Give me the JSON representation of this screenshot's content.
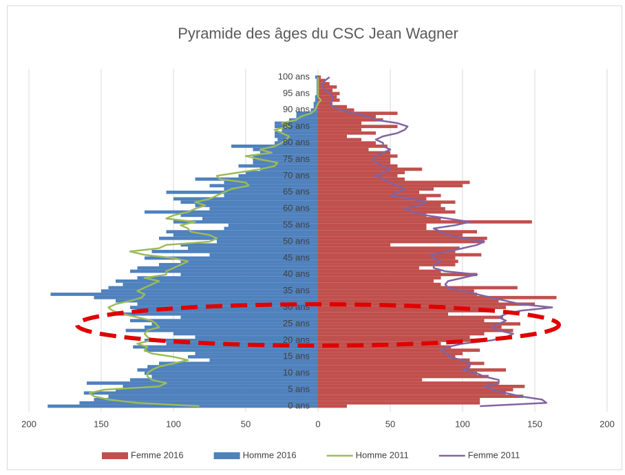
{
  "chart_data": {
    "type": "bar",
    "orientation": "horizontal",
    "title": "Pyramide des âges du CSC Jean Wagner",
    "categories": [
      "0 ans",
      null,
      null,
      null,
      null,
      "5 ans",
      null,
      null,
      null,
      null,
      "10 ans",
      null,
      null,
      null,
      null,
      "15 ans",
      null,
      null,
      null,
      null,
      "20 ans",
      null,
      null,
      null,
      null,
      "25 ans",
      null,
      null,
      null,
      null,
      "30 ans",
      null,
      null,
      null,
      null,
      "35 ans",
      null,
      null,
      null,
      null,
      "40 ans",
      null,
      null,
      null,
      null,
      "45 ans",
      null,
      null,
      null,
      null,
      "50 ans",
      null,
      null,
      null,
      null,
      "55 ans",
      null,
      null,
      null,
      null,
      "60 ans",
      null,
      null,
      null,
      null,
      "65 ans",
      null,
      null,
      null,
      null,
      "70 ans",
      null,
      null,
      null,
      null,
      "75 ans",
      null,
      null,
      null,
      null,
      "80 ans",
      null,
      null,
      null,
      null,
      "85 ans",
      null,
      null,
      null,
      null,
      "90 ans",
      null,
      null,
      null,
      null,
      "95 ans",
      null,
      null,
      null,
      null,
      "100 ans"
    ],
    "xlim": [
      -200,
      200
    ],
    "xticks": [
      {
        "value": -200,
        "label": "200"
      },
      {
        "value": -150,
        "label": "150"
      },
      {
        "value": -100,
        "label": "100"
      },
      {
        "value": -50,
        "label": "50"
      },
      0,
      50,
      100,
      150,
      200
    ],
    "grid": true,
    "legend": "bottom",
    "series": [
      {
        "name": "Femme 2016",
        "type": "bar",
        "color": "#c0504d",
        "values": [
          20,
          112,
          112,
          142,
          130,
          135,
          143,
          125,
          72,
          118,
          110,
          130,
          105,
          115,
          105,
          95,
          100,
          112,
          92,
          85,
          110,
          105,
          115,
          135,
          127,
          140,
          115,
          128,
          90,
          122,
          130,
          150,
          125,
          165,
          110,
          108,
          138,
          85,
          80,
          85,
          110,
          85,
          70,
          95,
          97,
          95,
          113,
          95,
          98,
          50,
          115,
          117,
          100,
          110,
          75,
          75,
          148,
          85,
          75,
          95,
          88,
          85,
          95,
          75,
          85,
          70,
          80,
          100,
          105,
          60,
          55,
          60,
          72,
          55,
          50,
          50,
          55,
          50,
          35,
          48,
          40,
          30,
          20,
          40,
          30,
          55,
          30,
          45,
          40,
          55,
          25,
          20,
          10,
          15,
          13,
          15,
          10,
          13,
          8,
          5,
          2
        ]
      },
      {
        "name": "Homme 2016",
        "type": "bar",
        "color": "#4f81bd",
        "values": [
          -187,
          -165,
          -155,
          -145,
          -162,
          -140,
          -135,
          -160,
          -130,
          -115,
          -120,
          -125,
          -118,
          -110,
          -75,
          -90,
          -85,
          -120,
          -128,
          -105,
          -120,
          -85,
          -100,
          -133,
          -120,
          -115,
          -130,
          -95,
          -140,
          -120,
          -130,
          -125,
          -140,
          -155,
          -185,
          -150,
          -145,
          -135,
          -140,
          -125,
          -95,
          -130,
          -125,
          -110,
          -95,
          -120,
          -75,
          -115,
          -90,
          -95,
          -70,
          -110,
          -100,
          -105,
          -65,
          -62,
          -100,
          -80,
          -95,
          -120,
          -75,
          -85,
          -95,
          -100,
          -65,
          -105,
          -65,
          -75,
          -65,
          -85,
          -55,
          -50,
          -40,
          -55,
          -45,
          -45,
          -45,
          -40,
          -45,
          -60,
          -30,
          -28,
          -30,
          -30,
          -25,
          -30,
          -30,
          -20,
          -15,
          -15,
          -5,
          -3,
          -3,
          -2,
          -2,
          -1,
          -1,
          -1,
          -1,
          -1,
          -2
        ]
      },
      {
        "name": "Homme 2011",
        "type": "line",
        "color": "#9bbb59",
        "values": [
          -82,
          -125,
          -145,
          -155,
          -158,
          -148,
          -110,
          -105,
          -115,
          -118,
          -118,
          -115,
          -110,
          -100,
          -90,
          -100,
          -115,
          -120,
          -118,
          -125,
          -115,
          -118,
          -120,
          -118,
          -110,
          -112,
          -115,
          -125,
          -135,
          -142,
          -145,
          -140,
          -130,
          -122,
          -120,
          -125,
          -120,
          -115,
          -110,
          -120,
          -105,
          -105,
          -100,
          -95,
          -90,
          -100,
          -120,
          -130,
          -110,
          -105,
          -75,
          -70,
          -75,
          -88,
          -90,
          -95,
          -85,
          -105,
          -100,
          -90,
          -85,
          -78,
          -85,
          -75,
          -70,
          -65,
          -60,
          -48,
          -50,
          -68,
          -70,
          -55,
          -40,
          -30,
          -28,
          -40,
          -50,
          -32,
          -40,
          -30,
          -25,
          -22,
          -20,
          -25,
          -30,
          -20,
          -25,
          -15,
          -12,
          -5,
          -2,
          -1,
          0,
          2,
          0,
          0,
          0,
          0,
          0,
          0,
          0
        ]
      },
      {
        "name": "Femme 2011",
        "type": "line",
        "color": "#8064a2",
        "values": [
          112,
          158,
          155,
          140,
          130,
          120,
          115,
          125,
          125,
          115,
          110,
          100,
          105,
          105,
          100,
          90,
          90,
          85,
          90,
          100,
          120,
          130,
          135,
          125,
          120,
          125,
          130,
          125,
          130,
          140,
          162,
          140,
          130,
          120,
          110,
          100,
          90,
          88,
          90,
          100,
          110,
          88,
          80,
          80,
          85,
          80,
          78,
          90,
          100,
          110,
          115,
          100,
          90,
          85,
          80,
          95,
          105,
          90,
          75,
          65,
          60,
          70,
          75,
          65,
          50,
          55,
          60,
          55,
          50,
          45,
          40,
          45,
          50,
          45,
          40,
          38,
          40,
          45,
          50,
          45,
          45,
          40,
          45,
          55,
          60,
          62,
          55,
          40,
          35,
          25,
          15,
          10,
          8,
          10,
          10,
          8,
          5,
          3,
          3,
          5,
          8
        ]
      }
    ]
  }
}
